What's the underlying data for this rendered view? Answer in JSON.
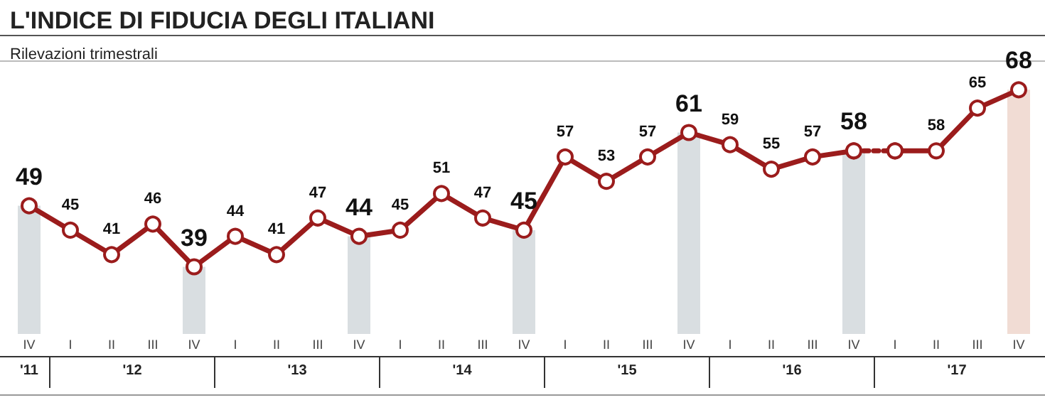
{
  "chart_data": {
    "type": "line",
    "title": "L'INDICE DI FIDUCIA DEGLI ITALIANI",
    "subtitle": "Rilevazioni trimestrali",
    "categories": [
      "IV",
      "I",
      "II",
      "III",
      "IV",
      "I",
      "II",
      "III",
      "IV",
      "I",
      "II",
      "III",
      "IV",
      "I",
      "II",
      "III",
      "IV",
      "I",
      "II",
      "III",
      "IV",
      "I",
      "II",
      "III",
      "IV"
    ],
    "annotations": [
      "'11",
      "'12",
      "'13",
      "'14",
      "'15",
      "'16",
      "'17"
    ],
    "ylim": [
      28,
      72
    ],
    "tick_labels": "x",
    "marker": "circle",
    "series": [
      {
        "type": "bar",
        "color": "#d9dee1",
        "colors": [
          "#d9dee1",
          null,
          null,
          null,
          "#d9dee1",
          null,
          null,
          null,
          "#d9dee1",
          null,
          null,
          null,
          "#d9dee1",
          null,
          null,
          null,
          "#d9dee1",
          null,
          null,
          null,
          "#d9dee1",
          null,
          null,
          null,
          "#f1dcd4"
        ],
        "values": [
          49,
          null,
          null,
          null,
          39,
          null,
          null,
          null,
          44,
          null,
          null,
          null,
          45,
          null,
          null,
          null,
          61,
          null,
          null,
          null,
          58,
          null,
          null,
          null,
          68
        ]
      },
      {
        "color": "#9b1c1c",
        "line_style": "solid",
        "values": [
          49,
          45,
          41,
          46,
          39,
          44,
          41,
          47,
          44,
          45,
          51,
          47,
          45,
          57,
          53,
          57,
          61,
          59,
          55,
          57,
          58,
          null,
          null,
          null,
          null
        ],
        "value_labels": [
          "49",
          "45",
          "41",
          "46",
          "39",
          "44",
          "41",
          "47",
          "44",
          "45",
          "51",
          "47",
          "45",
          "57",
          "53",
          "57",
          "61",
          "59",
          "55",
          "57",
          "58",
          null,
          null,
          null,
          null
        ]
      },
      {
        "color": "#9b1c1c",
        "line_style": "dotted",
        "values": [
          null,
          null,
          null,
          null,
          null,
          null,
          null,
          null,
          null,
          null,
          null,
          null,
          null,
          null,
          null,
          null,
          null,
          null,
          null,
          null,
          58,
          58,
          null,
          null,
          null
        ]
      },
      {
        "color": "#9b1c1c",
        "line_style": "solid",
        "values": [
          null,
          null,
          null,
          null,
          null,
          null,
          null,
          null,
          null,
          null,
          null,
          null,
          null,
          null,
          null,
          null,
          null,
          null,
          null,
          null,
          null,
          58,
          58,
          65,
          68
        ],
        "value_labels": [
          null,
          null,
          null,
          null,
          null,
          null,
          null,
          null,
          null,
          null,
          null,
          null,
          null,
          null,
          null,
          null,
          null,
          null,
          null,
          null,
          null,
          null,
          "58",
          "65",
          "68"
        ]
      }
    ]
  }
}
